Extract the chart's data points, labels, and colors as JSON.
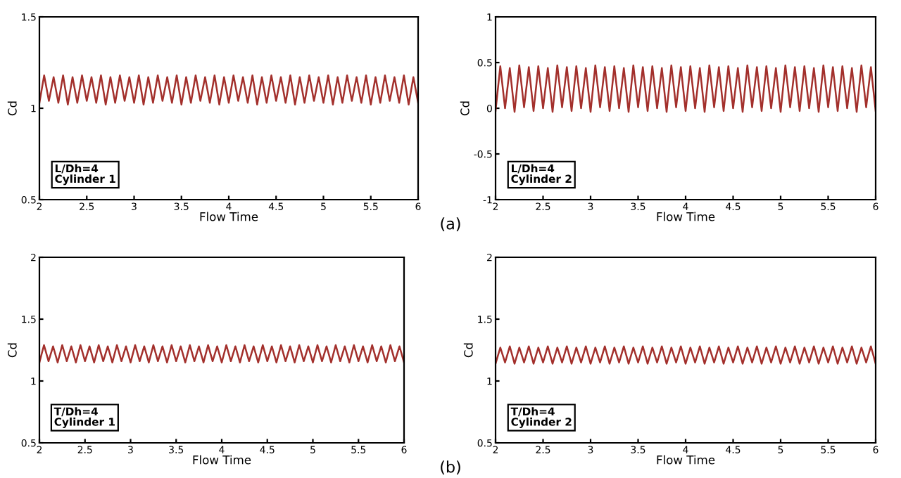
{
  "chart_data": [
    {
      "type": "line",
      "xlabel": "Flow Time",
      "ylabel": "Cd",
      "annotations": [
        "L/Dh=4\nCylinder 1"
      ],
      "xlim": [
        2,
        6
      ],
      "ylim": [
        0.5,
        1.5
      ],
      "xticks": [
        2,
        2.5,
        3,
        3.5,
        4,
        4.5,
        5,
        5.5,
        6
      ],
      "yticks": [
        0.5,
        1,
        1.5
      ],
      "grid": false,
      "legend": false,
      "x": [
        2,
        2.05,
        2.1,
        2.15,
        2.2,
        2.25,
        2.3,
        2.35,
        2.4,
        2.45,
        2.5,
        2.55,
        2.6,
        2.65,
        2.7,
        2.75,
        2.8,
        2.85,
        2.9,
        2.95,
        3,
        3.05,
        3.1,
        3.15,
        3.2,
        3.25,
        3.3,
        3.35,
        3.4,
        3.45,
        3.5,
        3.55,
        3.6,
        3.65,
        3.7,
        3.75,
        3.8,
        3.85,
        3.9,
        3.95,
        4,
        4.05,
        4.1,
        4.15,
        4.2,
        4.25,
        4.3,
        4.35,
        4.4,
        4.45,
        4.5,
        4.55,
        4.6,
        4.65,
        4.7,
        4.75,
        4.8,
        4.85,
        4.9,
        4.95,
        5,
        5.05,
        5.1,
        5.15,
        5.2,
        5.25,
        5.3,
        5.35,
        5.4,
        5.45,
        5.5,
        5.55,
        5.6,
        5.65,
        5.7,
        5.75,
        5.8,
        5.85,
        5.9,
        5.95,
        6
      ],
      "series": [
        {
          "color": "#a3302c",
          "values": [
            1.03,
            1.18,
            1.04,
            1.17,
            1.03,
            1.18,
            1.02,
            1.17,
            1.03,
            1.18,
            1.04,
            1.17,
            1.03,
            1.18,
            1.02,
            1.17,
            1.03,
            1.18,
            1.04,
            1.17,
            1.03,
            1.18,
            1.02,
            1.17,
            1.03,
            1.18,
            1.04,
            1.17,
            1.03,
            1.18,
            1.02,
            1.17,
            1.03,
            1.18,
            1.04,
            1.17,
            1.03,
            1.18,
            1.02,
            1.17,
            1.03,
            1.18,
            1.04,
            1.17,
            1.03,
            1.18,
            1.02,
            1.17,
            1.03,
            1.18,
            1.04,
            1.17,
            1.03,
            1.18,
            1.02,
            1.17,
            1.03,
            1.18,
            1.04,
            1.17,
            1.03,
            1.18,
            1.02,
            1.17,
            1.03,
            1.18,
            1.04,
            1.17,
            1.03,
            1.18,
            1.02,
            1.17,
            1.03,
            1.18,
            1.04,
            1.17,
            1.03,
            1.18,
            1.02,
            1.17,
            1.03
          ]
        }
      ]
    },
    {
      "type": "line",
      "xlabel": "Flow Time",
      "ylabel": "Cd",
      "annotations": [
        "L/Dh=4\nCylinder 2",
        "(a)"
      ],
      "xlim": [
        2,
        6
      ],
      "ylim": [
        -1,
        1
      ],
      "xticks": [
        2,
        2.5,
        3,
        3.5,
        4,
        4.5,
        5,
        5.5,
        6
      ],
      "yticks": [
        -1,
        -0.5,
        0,
        0.5,
        1
      ],
      "grid": false,
      "legend": false,
      "x": [
        2,
        2.05,
        2.1,
        2.15,
        2.2,
        2.25,
        2.3,
        2.35,
        2.4,
        2.45,
        2.5,
        2.55,
        2.6,
        2.65,
        2.7,
        2.75,
        2.8,
        2.85,
        2.9,
        2.95,
        3,
        3.05,
        3.1,
        3.15,
        3.2,
        3.25,
        3.3,
        3.35,
        3.4,
        3.45,
        3.5,
        3.55,
        3.6,
        3.65,
        3.7,
        3.75,
        3.8,
        3.85,
        3.9,
        3.95,
        4,
        4.05,
        4.1,
        4.15,
        4.2,
        4.25,
        4.3,
        4.35,
        4.4,
        4.45,
        4.5,
        4.55,
        4.6,
        4.65,
        4.7,
        4.75,
        4.8,
        4.85,
        4.9,
        4.95,
        5,
        5.05,
        5.1,
        5.15,
        5.2,
        5.25,
        5.3,
        5.35,
        5.4,
        5.45,
        5.5,
        5.55,
        5.6,
        5.65,
        5.7,
        5.75,
        5.8,
        5.85,
        5.9,
        5.95,
        6
      ],
      "series": [
        {
          "color": "#a3302c",
          "values": [
            -0.03,
            0.46,
            0.0,
            0.44,
            -0.04,
            0.47,
            0.01,
            0.45,
            -0.03,
            0.46,
            0.0,
            0.44,
            -0.04,
            0.47,
            0.01,
            0.45,
            -0.03,
            0.46,
            0.0,
            0.44,
            -0.04,
            0.47,
            0.01,
            0.45,
            -0.03,
            0.46,
            0.0,
            0.44,
            -0.04,
            0.47,
            0.01,
            0.45,
            -0.03,
            0.46,
            0.0,
            0.44,
            -0.04,
            0.47,
            0.01,
            0.45,
            -0.03,
            0.46,
            0.0,
            0.44,
            -0.04,
            0.47,
            0.01,
            0.45,
            -0.03,
            0.46,
            0.0,
            0.44,
            -0.04,
            0.47,
            0.01,
            0.45,
            -0.03,
            0.46,
            0.0,
            0.44,
            -0.04,
            0.47,
            0.01,
            0.45,
            -0.03,
            0.46,
            0.0,
            0.44,
            -0.04,
            0.47,
            0.01,
            0.45,
            -0.03,
            0.46,
            0.0,
            0.44,
            -0.04,
            0.47,
            0.01,
            0.45,
            -0.03
          ]
        }
      ]
    },
    {
      "type": "line",
      "xlabel": "Flow Time",
      "ylabel": "Cd",
      "annotations": [
        "T/Dh=4\nCylinder 1"
      ],
      "xlim": [
        2,
        6
      ],
      "ylim": [
        0.5,
        2
      ],
      "xticks": [
        2,
        2.5,
        3,
        3.5,
        4,
        4.5,
        5,
        5.5,
        6
      ],
      "yticks": [
        0.5,
        1,
        1.5,
        2
      ],
      "grid": false,
      "legend": false,
      "x": [
        2,
        2.05,
        2.1,
        2.15,
        2.2,
        2.25,
        2.3,
        2.35,
        2.4,
        2.45,
        2.5,
        2.55,
        2.6,
        2.65,
        2.7,
        2.75,
        2.8,
        2.85,
        2.9,
        2.95,
        3,
        3.05,
        3.1,
        3.15,
        3.2,
        3.25,
        3.3,
        3.35,
        3.4,
        3.45,
        3.5,
        3.55,
        3.6,
        3.65,
        3.7,
        3.75,
        3.8,
        3.85,
        3.9,
        3.95,
        4,
        4.05,
        4.1,
        4.15,
        4.2,
        4.25,
        4.3,
        4.35,
        4.4,
        4.45,
        4.5,
        4.55,
        4.6,
        4.65,
        4.7,
        4.75,
        4.8,
        4.85,
        4.9,
        4.95,
        5,
        5.05,
        5.1,
        5.15,
        5.2,
        5.25,
        5.3,
        5.35,
        5.4,
        5.45,
        5.5,
        5.55,
        5.6,
        5.65,
        5.7,
        5.75,
        5.8,
        5.85,
        5.9,
        5.95,
        6
      ],
      "series": [
        {
          "color": "#a3302c",
          "values": [
            1.15,
            1.29,
            1.16,
            1.28,
            1.15,
            1.29,
            1.16,
            1.28,
            1.15,
            1.29,
            1.16,
            1.28,
            1.15,
            1.29,
            1.16,
            1.28,
            1.15,
            1.29,
            1.16,
            1.28,
            1.15,
            1.29,
            1.16,
            1.28,
            1.15,
            1.29,
            1.16,
            1.28,
            1.15,
            1.29,
            1.16,
            1.28,
            1.15,
            1.29,
            1.16,
            1.28,
            1.15,
            1.29,
            1.16,
            1.28,
            1.15,
            1.29,
            1.16,
            1.28,
            1.15,
            1.29,
            1.16,
            1.28,
            1.15,
            1.29,
            1.16,
            1.28,
            1.15,
            1.29,
            1.16,
            1.28,
            1.15,
            1.29,
            1.16,
            1.28,
            1.15,
            1.29,
            1.16,
            1.28,
            1.15,
            1.29,
            1.16,
            1.28,
            1.15,
            1.29,
            1.16,
            1.28,
            1.15,
            1.29,
            1.16,
            1.28,
            1.15,
            1.29,
            1.16,
            1.28,
            1.15
          ]
        }
      ]
    },
    {
      "type": "line",
      "xlabel": "Flow Time",
      "ylabel": "Cd",
      "annotations": [
        "T/Dh=4\nCylinder 2",
        "(b)"
      ],
      "xlim": [
        2,
        6
      ],
      "ylim": [
        0.5,
        2
      ],
      "xticks": [
        2,
        2.5,
        3,
        3.5,
        4,
        4.5,
        5,
        5.5,
        6
      ],
      "yticks": [
        0.5,
        1,
        1.5,
        2
      ],
      "grid": false,
      "legend": false,
      "x": [
        2,
        2.05,
        2.1,
        2.15,
        2.2,
        2.25,
        2.3,
        2.35,
        2.4,
        2.45,
        2.5,
        2.55,
        2.6,
        2.65,
        2.7,
        2.75,
        2.8,
        2.85,
        2.9,
        2.95,
        3,
        3.05,
        3.1,
        3.15,
        3.2,
        3.25,
        3.3,
        3.35,
        3.4,
        3.45,
        3.5,
        3.55,
        3.6,
        3.65,
        3.7,
        3.75,
        3.8,
        3.85,
        3.9,
        3.95,
        4,
        4.05,
        4.1,
        4.15,
        4.2,
        4.25,
        4.3,
        4.35,
        4.4,
        4.45,
        4.5,
        4.55,
        4.6,
        4.65,
        4.7,
        4.75,
        4.8,
        4.85,
        4.9,
        4.95,
        5,
        5.05,
        5.1,
        5.15,
        5.2,
        5.25,
        5.3,
        5.35,
        5.4,
        5.45,
        5.5,
        5.55,
        5.6,
        5.65,
        5.7,
        5.75,
        5.8,
        5.85,
        5.9,
        5.95,
        6
      ],
      "series": [
        {
          "color": "#a3302c",
          "values": [
            1.14,
            1.27,
            1.15,
            1.28,
            1.14,
            1.27,
            1.15,
            1.28,
            1.14,
            1.27,
            1.15,
            1.28,
            1.14,
            1.27,
            1.15,
            1.28,
            1.14,
            1.27,
            1.15,
            1.28,
            1.14,
            1.27,
            1.15,
            1.28,
            1.14,
            1.27,
            1.15,
            1.28,
            1.14,
            1.27,
            1.15,
            1.28,
            1.14,
            1.27,
            1.15,
            1.28,
            1.14,
            1.27,
            1.15,
            1.28,
            1.14,
            1.27,
            1.15,
            1.28,
            1.14,
            1.27,
            1.15,
            1.28,
            1.14,
            1.27,
            1.15,
            1.28,
            1.14,
            1.27,
            1.15,
            1.28,
            1.14,
            1.27,
            1.15,
            1.28,
            1.14,
            1.27,
            1.15,
            1.28,
            1.14,
            1.27,
            1.15,
            1.28,
            1.14,
            1.27,
            1.15,
            1.28,
            1.14,
            1.27,
            1.15,
            1.28,
            1.14,
            1.27,
            1.15,
            1.28,
            1.14
          ]
        }
      ]
    }
  ]
}
